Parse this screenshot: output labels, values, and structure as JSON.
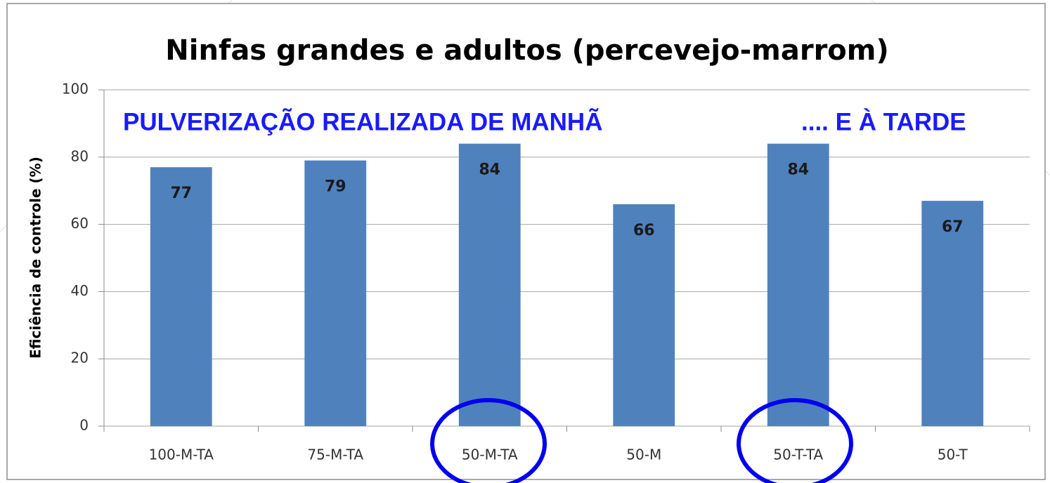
{
  "chart_data": {
    "type": "bar",
    "title": "Ninfas grandes e adultos (percevejo-marrom)",
    "y_label": "Eficiência de controle (%)",
    "annotations": [
      "PULVERIZAÇÃO REALIZADA DE MANHÃ",
      ".... E À TARDE"
    ],
    "categories": [
      "100-M-TA",
      "75-M-TA",
      "50-M-TA",
      "50-M",
      "50-T-TA",
      "50-T"
    ],
    "values": [
      77,
      79,
      84,
      66,
      84,
      67
    ],
    "color": "#4f81bd",
    "ylim": [
      0,
      100
    ],
    "yticks": [
      0,
      20,
      40,
      60,
      80,
      100
    ],
    "grid": true
  }
}
